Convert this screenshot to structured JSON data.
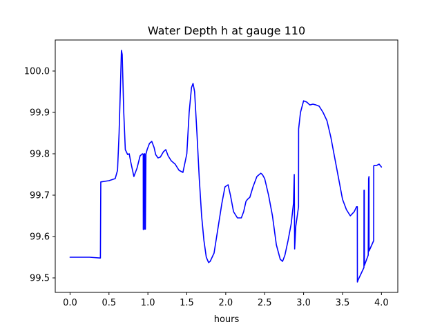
{
  "chart_data": {
    "type": "line",
    "title": "Water Depth h at gauge 110",
    "xlabel": "hours",
    "ylabel": "",
    "xlim": [
      -0.19,
      4.21
    ],
    "ylim": [
      99.465,
      100.075
    ],
    "grid": false,
    "x_ticks": [
      0.0,
      0.5,
      1.0,
      1.5,
      2.0,
      2.5,
      3.0,
      3.5,
      4.0
    ],
    "x_tick_labels": [
      "0.0",
      "0.5",
      "1.0",
      "1.5",
      "2.0",
      "2.5",
      "3.0",
      "3.5",
      "4.0"
    ],
    "y_ticks": [
      99.5,
      99.6,
      99.7,
      99.8,
      99.9,
      100.0
    ],
    "y_tick_labels": [
      "99.5",
      "99.6",
      "99.7",
      "99.8",
      "99.9",
      "100.0"
    ],
    "series": [
      {
        "color": "#0000ff",
        "x": [
          0.0,
          0.25,
          0.39,
          0.395,
          0.5,
          0.58,
          0.61,
          0.63,
          0.65,
          0.66,
          0.67,
          0.69,
          0.71,
          0.74,
          0.76,
          0.78,
          0.82,
          0.86,
          0.9,
          0.93,
          0.94,
          0.941,
          0.945,
          0.95,
          0.96,
          0.961,
          0.968,
          0.975,
          0.976,
          0.99,
          1.02,
          1.05,
          1.08,
          1.1,
          1.13,
          1.16,
          1.2,
          1.23,
          1.26,
          1.3,
          1.35,
          1.4,
          1.45,
          1.5,
          1.53,
          1.56,
          1.58,
          1.6,
          1.63,
          1.66,
          1.69,
          1.72,
          1.75,
          1.78,
          1.8,
          1.85,
          1.9,
          1.95,
          1.99,
          2.03,
          2.06,
          2.1,
          2.15,
          2.2,
          2.23,
          2.26,
          2.28,
          2.31,
          2.35,
          2.4,
          2.45,
          2.47,
          2.5,
          2.55,
          2.6,
          2.65,
          2.7,
          2.73,
          2.76,
          2.8,
          2.84,
          2.87,
          2.88,
          2.885,
          2.9,
          2.935,
          2.936,
          2.96,
          3.0,
          3.04,
          3.08,
          3.12,
          3.16,
          3.2,
          3.25,
          3.3,
          3.35,
          3.4,
          3.45,
          3.5,
          3.55,
          3.6,
          3.65,
          3.68,
          3.69,
          3.691,
          3.7,
          3.775,
          3.776,
          3.78,
          3.781,
          3.83,
          3.835,
          3.84,
          3.841,
          3.9,
          3.901,
          3.905,
          3.94,
          3.97,
          4.0
        ],
        "y": [
          99.55,
          99.55,
          99.548,
          99.732,
          99.735,
          99.74,
          99.76,
          99.85,
          99.98,
          100.05,
          100.04,
          99.9,
          99.81,
          99.798,
          99.8,
          99.78,
          99.745,
          99.765,
          99.795,
          99.8,
          99.798,
          99.617,
          99.617,
          99.8,
          99.8,
          99.618,
          99.618,
          99.8,
          99.8,
          99.81,
          99.825,
          99.83,
          99.815,
          99.798,
          99.79,
          99.792,
          99.805,
          99.81,
          99.795,
          99.783,
          99.775,
          99.76,
          99.755,
          99.8,
          99.9,
          99.96,
          99.97,
          99.95,
          99.85,
          99.74,
          99.65,
          99.59,
          99.55,
          99.537,
          99.54,
          99.56,
          99.62,
          99.68,
          99.72,
          99.725,
          99.7,
          99.66,
          99.645,
          99.645,
          99.66,
          99.685,
          99.69,
          99.695,
          99.72,
          99.745,
          99.753,
          99.75,
          99.74,
          99.7,
          99.65,
          99.58,
          99.545,
          99.54,
          99.555,
          99.59,
          99.63,
          99.68,
          99.75,
          99.57,
          99.625,
          99.672,
          99.86,
          99.9,
          99.928,
          99.925,
          99.918,
          99.92,
          99.918,
          99.915,
          99.9,
          99.88,
          99.84,
          99.79,
          99.74,
          99.69,
          99.665,
          99.65,
          99.66,
          99.672,
          99.672,
          99.49,
          99.495,
          99.525,
          99.712,
          99.712,
          99.53,
          99.555,
          99.74,
          99.745,
          99.565,
          99.59,
          99.77,
          99.772,
          99.772,
          99.775,
          99.768
        ]
      }
    ]
  }
}
